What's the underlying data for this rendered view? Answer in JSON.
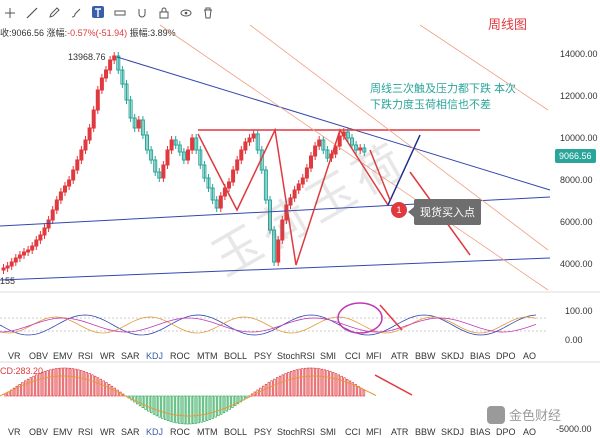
{
  "toolbar": {
    "icons": [
      "crosshair-icon",
      "trendline-icon",
      "pencil-icon",
      "brush-icon",
      "text-icon",
      "measure-icon",
      "magnet-icon",
      "lock-icon",
      "eye-icon",
      "trash-icon"
    ]
  },
  "info": {
    "close": "收:9066.56",
    "change_label": "涨幅:",
    "change_value": "-0.57%(-51.94)",
    "amp_label": "振幅:",
    "amp_value": "3.89%"
  },
  "title": "周线图",
  "note": "周线三次触及压力都下跌 本次下跌力度玉荷相信也不差",
  "callout": {
    "number": "1",
    "text": "现货买入点"
  },
  "price_tag": "9066.56",
  "watermark": "玉荷玉荷",
  "peak_label": "13968.76",
  "low_label": "155",
  "price_axis": [
    "14000.00",
    "12000.00",
    "10000.00",
    "8000.00",
    "6000.00",
    "4000.00"
  ],
  "osc_axis": [
    "100.00",
    "0.00"
  ],
  "macd_label": "CD:283.20",
  "macd_axis": [
    "-5000.00"
  ],
  "indicators_row1": [
    "VR",
    "OBV",
    "EMV",
    "RSI",
    "WR",
    "SAR",
    "KDJ",
    "ROC",
    "MTM",
    "BOLL",
    "PSY",
    "StochRSI",
    "SMI",
    "CCI",
    "MFI",
    "ATR",
    "BBW",
    "SKDJ",
    "BIAS",
    "DPO",
    "AO"
  ],
  "indicators_row2": [
    "VR",
    "OBV",
    "EMV",
    "RSI",
    "WR",
    "SAR",
    "KDJ",
    "ROC",
    "MTM",
    "BOLL",
    "PSY",
    "StochRSI",
    "SMI",
    "CCI",
    "MFI",
    "ATR",
    "BBW",
    "SKDJ",
    "BIAS",
    "DPO",
    "AO"
  ],
  "active_indicator": "KDJ",
  "logo_text": "金色财经",
  "colors": {
    "up": "#e0393e",
    "down": "#2aa59a",
    "trend": "#3346b0",
    "resistance": "#e0393e",
    "brand": "#3a5ea8"
  }
}
